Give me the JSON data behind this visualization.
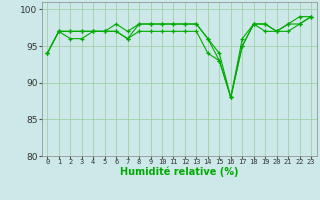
{
  "title": "",
  "xlabel": "Humidité relative (%)",
  "ylabel": "",
  "bg_color": "#cce8e8",
  "line_color": "#00aa00",
  "grid_color": "#99cc99",
  "ylim": [
    80,
    101
  ],
  "xlim": [
    -0.5,
    23.5
  ],
  "yticks": [
    80,
    85,
    90,
    95,
    100
  ],
  "xtick_labels": [
    "0",
    "1",
    "2",
    "3",
    "4",
    "5",
    "6",
    "7",
    "8",
    "9",
    "10",
    "11",
    "12",
    "13",
    "14",
    "15",
    "16",
    "17",
    "18",
    "19",
    "20",
    "21",
    "22",
    "23"
  ],
  "series": [
    [
      94,
      97,
      97,
      97,
      97,
      97,
      97,
      96,
      97,
      97,
      97,
      97,
      97,
      97,
      94,
      93,
      88,
      95,
      98,
      97,
      97,
      98,
      98,
      99
    ],
    [
      94,
      97,
      97,
      97,
      97,
      97,
      98,
      97,
      98,
      98,
      98,
      98,
      98,
      98,
      96,
      94,
      88,
      96,
      98,
      98,
      97,
      98,
      99,
      99
    ],
    [
      94,
      97,
      96,
      96,
      97,
      97,
      97,
      96,
      98,
      98,
      98,
      98,
      98,
      98,
      96,
      93,
      88,
      95,
      98,
      98,
      97,
      97,
      98,
      99
    ]
  ]
}
